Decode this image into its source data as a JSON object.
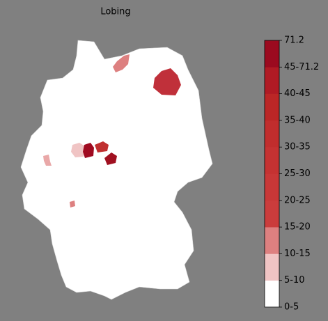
{
  "title": "Lobing",
  "legend": {
    "labels": [
      "0-5",
      "5-10",
      "10-15",
      "15-20",
      "20-25",
      "25-30",
      "30-35",
      "35-40",
      "40-45",
      "45-71.2",
      "71.2"
    ],
    "colors": [
      "#ffffff",
      "#f0c4c4",
      "#dd8080",
      "#cb3c3c",
      "#c83737",
      "#c53232",
      "#c12d2d",
      "#bb2626",
      "#b01a24",
      "#9b0a1f"
    ]
  }
}
